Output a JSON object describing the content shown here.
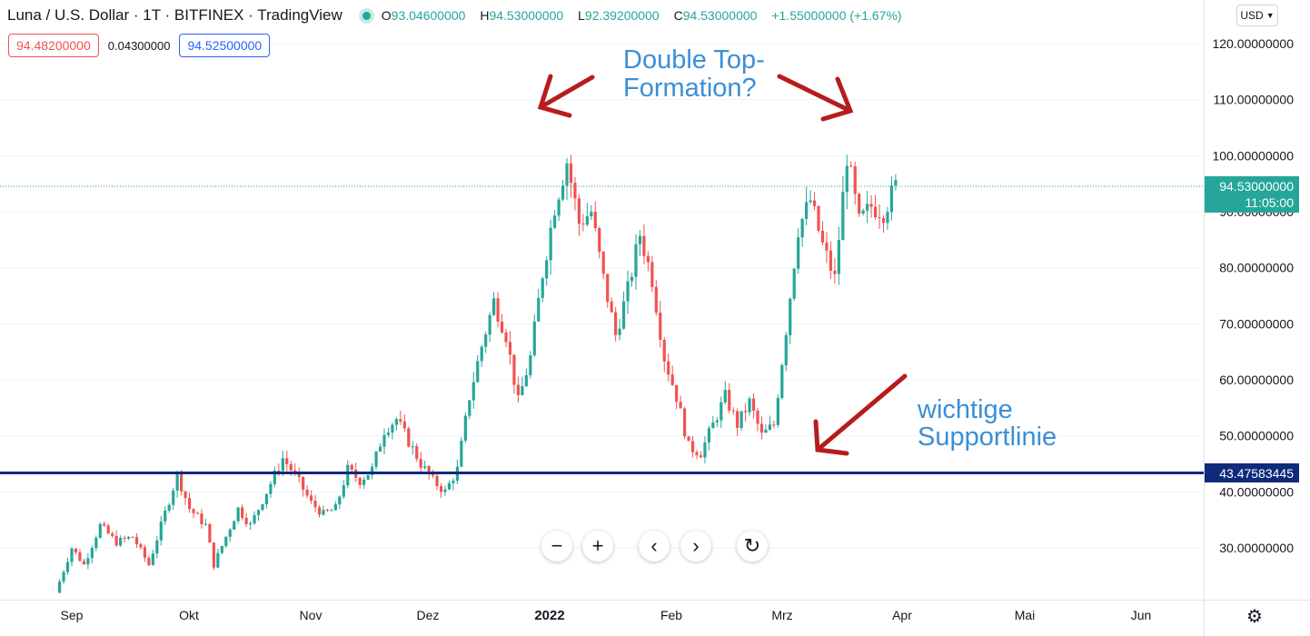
{
  "header": {
    "symbol": "Luna / U.S. Dollar · 1T · BITFINEX · TradingView",
    "ohlc": {
      "o_label": "O",
      "o": "93.04600000",
      "h_label": "H",
      "h": "94.53000000",
      "l_label": "L",
      "l": "92.39200000",
      "c_label": "C",
      "c": "94.53000000",
      "change": "+1.55000000 (+1.67%)"
    },
    "sell_price": "94.48200000",
    "spread": "0.04300000",
    "buy_price": "94.52500000",
    "currency": "USD"
  },
  "annotations": {
    "double_top": [
      "Double Top-",
      "Formation?"
    ],
    "support": [
      "wichtige",
      "Supportlinie"
    ]
  },
  "price_labels": {
    "last_price": "94.53000000",
    "countdown": "11:05:00",
    "support_level": "43.47583445"
  },
  "colors": {
    "up": "#26a69a",
    "down": "#ef5350",
    "support_line": "#0d2b7a",
    "annotation_text": "#3a8fd6",
    "arrow": "#b71c1c",
    "grid": "#f0f3fa"
  },
  "chart_data": {
    "type": "candlestick",
    "y_tick_labels": [
      "30.00000000",
      "40.00000000",
      "50.00000000",
      "60.00000000",
      "70.00000000",
      "80.00000000",
      "90.00000000",
      "100.00000000",
      "110.00000000",
      "120.00000000"
    ],
    "y_ticks": [
      30,
      40,
      50,
      60,
      70,
      80,
      90,
      100,
      110,
      120
    ],
    "x_tick_labels": [
      "Sep",
      "Okt",
      "Nov",
      "Dez",
      "2022",
      "Feb",
      "Mrz",
      "Apr",
      "Mai",
      "Jun"
    ],
    "support_level": 43.47583445,
    "last_close": 94.53,
    "ylim": [
      20,
      125
    ],
    "series": [
      {
        "date": "2021-08-29",
        "close": 22
      },
      {
        "date": "2021-09-02",
        "close": 30
      },
      {
        "date": "2021-09-05",
        "close": 27
      },
      {
        "date": "2021-09-09",
        "close": 34
      },
      {
        "date": "2021-09-13",
        "close": 31
      },
      {
        "date": "2021-09-17",
        "close": 32
      },
      {
        "date": "2021-09-21",
        "close": 27
      },
      {
        "date": "2021-09-24",
        "close": 34
      },
      {
        "date": "2021-09-28",
        "close": 43
      },
      {
        "date": "2021-10-01",
        "close": 37
      },
      {
        "date": "2021-10-05",
        "close": 34
      },
      {
        "date": "2021-10-07",
        "close": 27
      },
      {
        "date": "2021-10-10",
        "close": 32
      },
      {
        "date": "2021-10-13",
        "close": 37
      },
      {
        "date": "2021-10-16",
        "close": 34
      },
      {
        "date": "2021-10-20",
        "close": 40
      },
      {
        "date": "2021-10-24",
        "close": 46
      },
      {
        "date": "2021-10-27",
        "close": 43
      },
      {
        "date": "2021-10-31",
        "close": 38
      },
      {
        "date": "2021-11-03",
        "close": 36
      },
      {
        "date": "2021-11-06",
        "close": 37
      },
      {
        "date": "2021-11-09",
        "close": 44
      },
      {
        "date": "2021-11-12",
        "close": 42
      },
      {
        "date": "2021-11-15",
        "close": 44
      },
      {
        "date": "2021-11-18",
        "close": 51
      },
      {
        "date": "2021-11-21",
        "close": 53
      },
      {
        "date": "2021-11-24",
        "close": 49
      },
      {
        "date": "2021-11-27",
        "close": 45
      },
      {
        "date": "2021-11-30",
        "close": 42
      },
      {
        "date": "2021-12-03",
        "close": 40
      },
      {
        "date": "2021-12-06",
        "close": 44
      },
      {
        "date": "2021-12-09",
        "close": 57
      },
      {
        "date": "2021-12-12",
        "close": 66
      },
      {
        "date": "2021-12-15",
        "close": 74
      },
      {
        "date": "2021-12-18",
        "close": 68
      },
      {
        "date": "2021-12-21",
        "close": 56
      },
      {
        "date": "2021-12-24",
        "close": 64
      },
      {
        "date": "2021-12-27",
        "close": 79
      },
      {
        "date": "2021-12-30",
        "close": 91
      },
      {
        "date": "2022-01-02",
        "close": 99
      },
      {
        "date": "2022-01-05",
        "close": 88
      },
      {
        "date": "2022-01-08",
        "close": 90
      },
      {
        "date": "2022-01-11",
        "close": 78
      },
      {
        "date": "2022-01-14",
        "close": 68
      },
      {
        "date": "2022-01-17",
        "close": 76
      },
      {
        "date": "2022-01-20",
        "close": 86
      },
      {
        "date": "2022-01-23",
        "close": 78
      },
      {
        "date": "2022-01-26",
        "close": 64
      },
      {
        "date": "2022-01-29",
        "close": 57
      },
      {
        "date": "2022-02-01",
        "close": 48
      },
      {
        "date": "2022-02-04",
        "close": 47
      },
      {
        "date": "2022-02-07",
        "close": 52
      },
      {
        "date": "2022-02-10",
        "close": 57
      },
      {
        "date": "2022-02-13",
        "close": 52
      },
      {
        "date": "2022-02-16",
        "close": 56
      },
      {
        "date": "2022-02-19",
        "close": 50
      },
      {
        "date": "2022-02-22",
        "close": 52
      },
      {
        "date": "2022-02-25",
        "close": 69
      },
      {
        "date": "2022-02-28",
        "close": 87
      },
      {
        "date": "2022-03-03",
        "close": 92
      },
      {
        "date": "2022-03-06",
        "close": 84
      },
      {
        "date": "2022-03-09",
        "close": 78
      },
      {
        "date": "2022-03-12",
        "close": 100
      },
      {
        "date": "2022-03-15",
        "close": 88
      },
      {
        "date": "2022-03-18",
        "close": 91
      },
      {
        "date": "2022-03-21",
        "close": 90
      },
      {
        "date": "2022-03-24",
        "close": 94.53
      }
    ]
  }
}
